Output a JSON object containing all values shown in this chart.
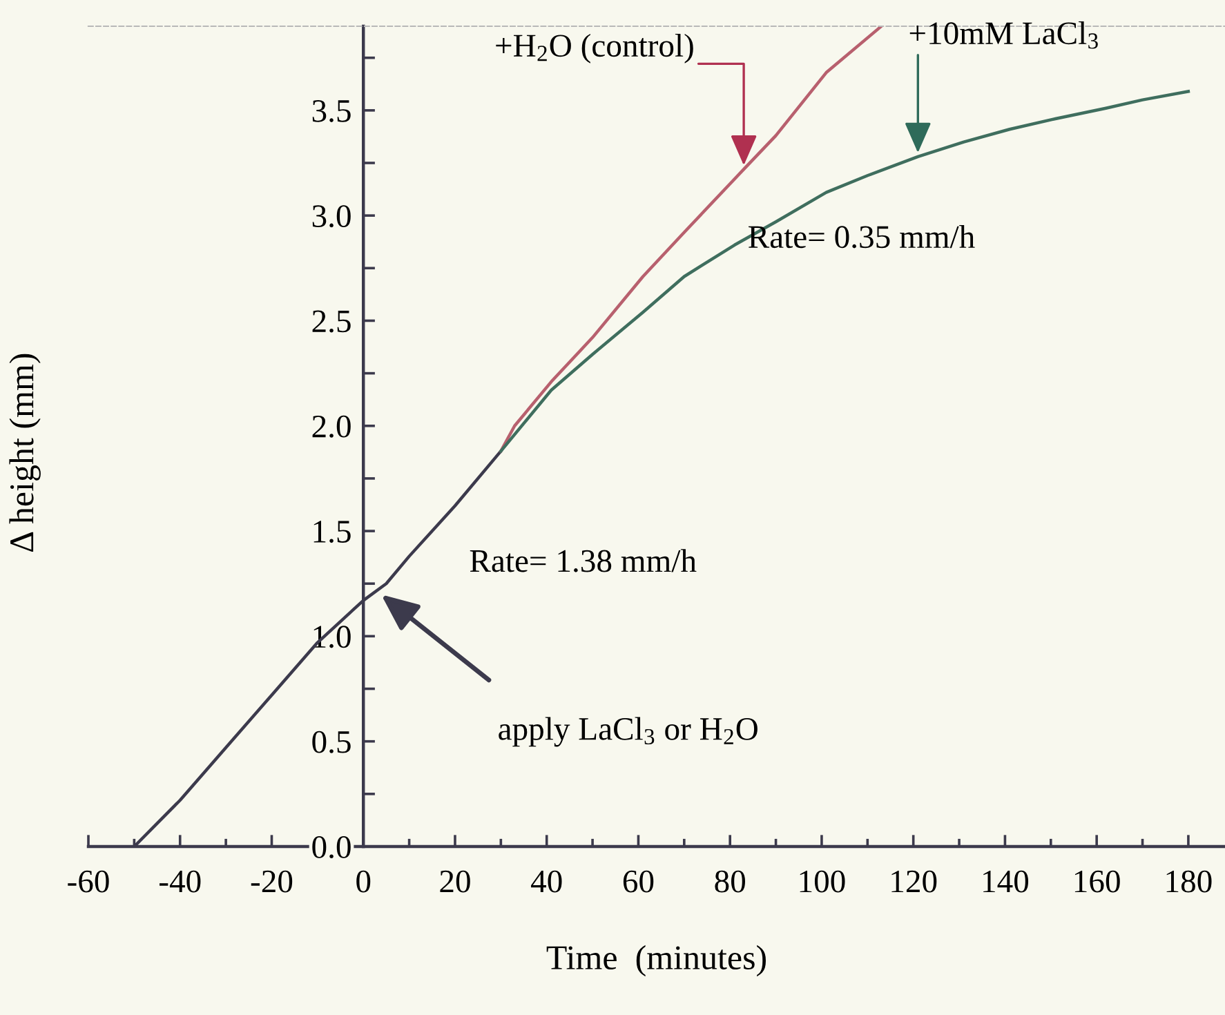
{
  "chart_data": {
    "type": "line",
    "xlabel": "Time  (minutes)",
    "ylabel": "Δ height (mm)",
    "series": [
      {
        "color": "#3c3a4c",
        "x": [
          -50,
          -40,
          -30,
          -20,
          -10,
          -5,
          0,
          5,
          10,
          20,
          30
        ],
        "values": [
          0.0,
          0.22,
          0.47,
          0.72,
          0.97,
          1.07,
          1.17,
          1.25,
          1.38,
          1.62,
          1.88
        ]
      },
      {
        "color": "#b8606e",
        "x": [
          30,
          33,
          41,
          50,
          61,
          70,
          83,
          90,
          101,
          113
        ],
        "values": [
          1.88,
          2.0,
          2.21,
          2.42,
          2.71,
          2.92,
          3.22,
          3.38,
          3.68,
          3.9
        ]
      },
      {
        "color": "#3f6e5e",
        "x": [
          30,
          41,
          50,
          61,
          70,
          81,
          90,
          101,
          110,
          121,
          131,
          141,
          151,
          162,
          170,
          180
        ],
        "values": [
          1.88,
          2.17,
          2.34,
          2.54,
          2.71,
          2.86,
          2.97,
          3.11,
          3.19,
          3.28,
          3.35,
          3.41,
          3.46,
          3.51,
          3.55,
          3.59
        ]
      }
    ],
    "annotations": [
      {
        "text": "+H$_{2}$O (control)",
        "x": 83,
        "y": 3.22
      },
      {
        "text": "+10mM LaCl$_{3}$",
        "x": 121,
        "y": 3.28
      },
      "Rate= 0.35 mm/h",
      "Rate= 1.38 mm/h",
      "apply LaCl$_{3}$ or H$_{2}$O"
    ],
    "xlim": [
      -60,
      188
    ],
    "ylim": [
      0,
      3.9
    ],
    "xticks": [
      -60,
      {
        "value": -50,
        "label": null
      },
      -40,
      {
        "value": -30,
        "label": null
      },
      -20,
      {
        "value": -10,
        "label": null
      },
      0,
      {
        "value": 10,
        "label": null
      },
      20,
      {
        "value": 30,
        "label": null
      },
      40,
      {
        "value": 50,
        "label": null
      },
      60,
      {
        "value": 70,
        "label": null
      },
      80,
      {
        "value": 90,
        "label": null
      },
      100,
      {
        "value": 110,
        "label": null
      },
      120,
      {
        "value": 130,
        "label": null
      },
      140,
      {
        "value": 150,
        "label": null
      },
      160,
      {
        "value": 170,
        "label": null
      },
      180
    ],
    "yticks": [
      {
        "value": 0,
        "label": "0.0"
      },
      {
        "value": 0.25,
        "label": null
      },
      {
        "value": 0.5,
        "label": "0.5"
      },
      {
        "value": 0.75,
        "label": null
      },
      {
        "value": 1,
        "label": "1.0"
      },
      {
        "value": 1.25,
        "label": null
      },
      {
        "value": 1.5,
        "label": "1.5"
      },
      {
        "value": 1.75,
        "label": null
      },
      {
        "value": 2,
        "label": "2.0"
      },
      {
        "value": 2.25,
        "label": null
      },
      {
        "value": 2.5,
        "label": "2.5"
      },
      {
        "value": 2.75,
        "label": null
      },
      {
        "value": 3,
        "label": "3.0"
      },
      {
        "value": 3.25,
        "label": null
      },
      {
        "value": 3.5,
        "label": "3.5"
      },
      {
        "value": 3.75,
        "label": null
      }
    ],
    "grid": false,
    "marker": "none",
    "line_style": "solid"
  }
}
